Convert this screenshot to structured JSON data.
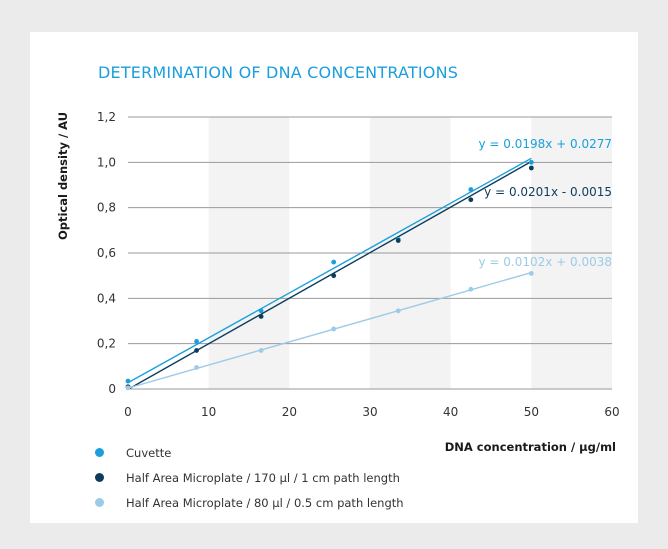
{
  "colors": {
    "cuvette": "#1a9fdc",
    "half_area_170": "#0d3d5c",
    "half_area_80": "#9ccbe8"
  },
  "chart_data": {
    "type": "scatter",
    "title": "DETERMINATION OF DNA CONCENTRATIONS",
    "xlabel": "DNA concentration / µg/ml",
    "ylabel": "Optical density / AU",
    "xlim": [
      0,
      60
    ],
    "ylim": [
      0,
      1.2
    ],
    "x_ticks": [
      "0",
      "10",
      "20",
      "30",
      "40",
      "50",
      "60"
    ],
    "y_ticks": [
      "0",
      "0,2",
      "0,4",
      "0,6",
      "0,8",
      "1,0",
      "1,2"
    ],
    "grid": "horizontal lines with alternating vertical shaded bands",
    "legend_position": "bottom-left",
    "series": [
      {
        "name": "Cuvette",
        "color": "#1a9fdc",
        "points": [
          [
            0,
            0.035
          ],
          [
            8.5,
            0.21
          ],
          [
            16.5,
            0.345
          ],
          [
            25.5,
            0.56
          ],
          [
            33.5,
            0.66
          ],
          [
            42.5,
            0.88
          ],
          [
            50,
            1.0
          ]
        ],
        "trend": {
          "slope": 0.0198,
          "intercept": 0.0277,
          "label": "y = 0.0198x + 0.0277"
        }
      },
      {
        "name": "Half Area Microplate / 170 µl / 1 cm path length",
        "color": "#0d3d5c",
        "points": [
          [
            0,
            0.01
          ],
          [
            8.5,
            0.17
          ],
          [
            16.5,
            0.32
          ],
          [
            25.5,
            0.5
          ],
          [
            33.5,
            0.655
          ],
          [
            42.5,
            0.835
          ],
          [
            50,
            0.975
          ]
        ],
        "trend": {
          "slope": 0.0201,
          "intercept": -0.0015,
          "label": "y = 0.0201x - 0.0015"
        }
      },
      {
        "name": "Half Area Microplate / 80 µl / 0.5 cm path length",
        "color": "#9ccbe8",
        "points": [
          [
            0,
            0.005
          ],
          [
            8.5,
            0.095
          ],
          [
            16.5,
            0.17
          ],
          [
            25.5,
            0.265
          ],
          [
            33.5,
            0.345
          ],
          [
            42.5,
            0.44
          ],
          [
            50,
            0.51
          ]
        ],
        "trend": {
          "slope": 0.0102,
          "intercept": 0.0038,
          "label": "y = 0.0102x + 0.0038"
        }
      }
    ]
  }
}
